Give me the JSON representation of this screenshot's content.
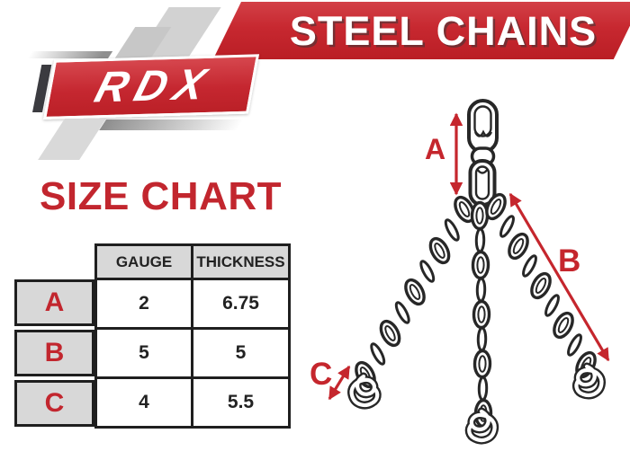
{
  "banner": {
    "title": "STEEL CHAINS"
  },
  "logo": {
    "brand": "RDX"
  },
  "page": {
    "title": "SIZE CHART"
  },
  "size_table": {
    "col_headers": [
      "GAUGE",
      "THICKNESS"
    ],
    "rows": [
      {
        "label": "A",
        "gauge": "2",
        "thickness": "6.75"
      },
      {
        "label": "B",
        "gauge": "5",
        "thickness": "5"
      },
      {
        "label": "C",
        "gauge": "4",
        "thickness": "5.5"
      }
    ]
  },
  "diagram": {
    "labels": {
      "a": "A",
      "b": "B",
      "c": "C"
    }
  },
  "colors": {
    "brand_red": "#c2262e",
    "banner_red": "#c72830",
    "arrow_red": "#c5262d",
    "table_gray": "#d8d8d8",
    "ink": "#2a2a2a"
  },
  "chart_data": {
    "type": "table",
    "title": "SIZE CHART",
    "columns": [
      "",
      "GAUGE",
      "THICKNESS"
    ],
    "rows": [
      [
        "A",
        "2",
        "6.75"
      ],
      [
        "B",
        "5",
        "5"
      ],
      [
        "C",
        "4",
        "5.5"
      ]
    ]
  }
}
